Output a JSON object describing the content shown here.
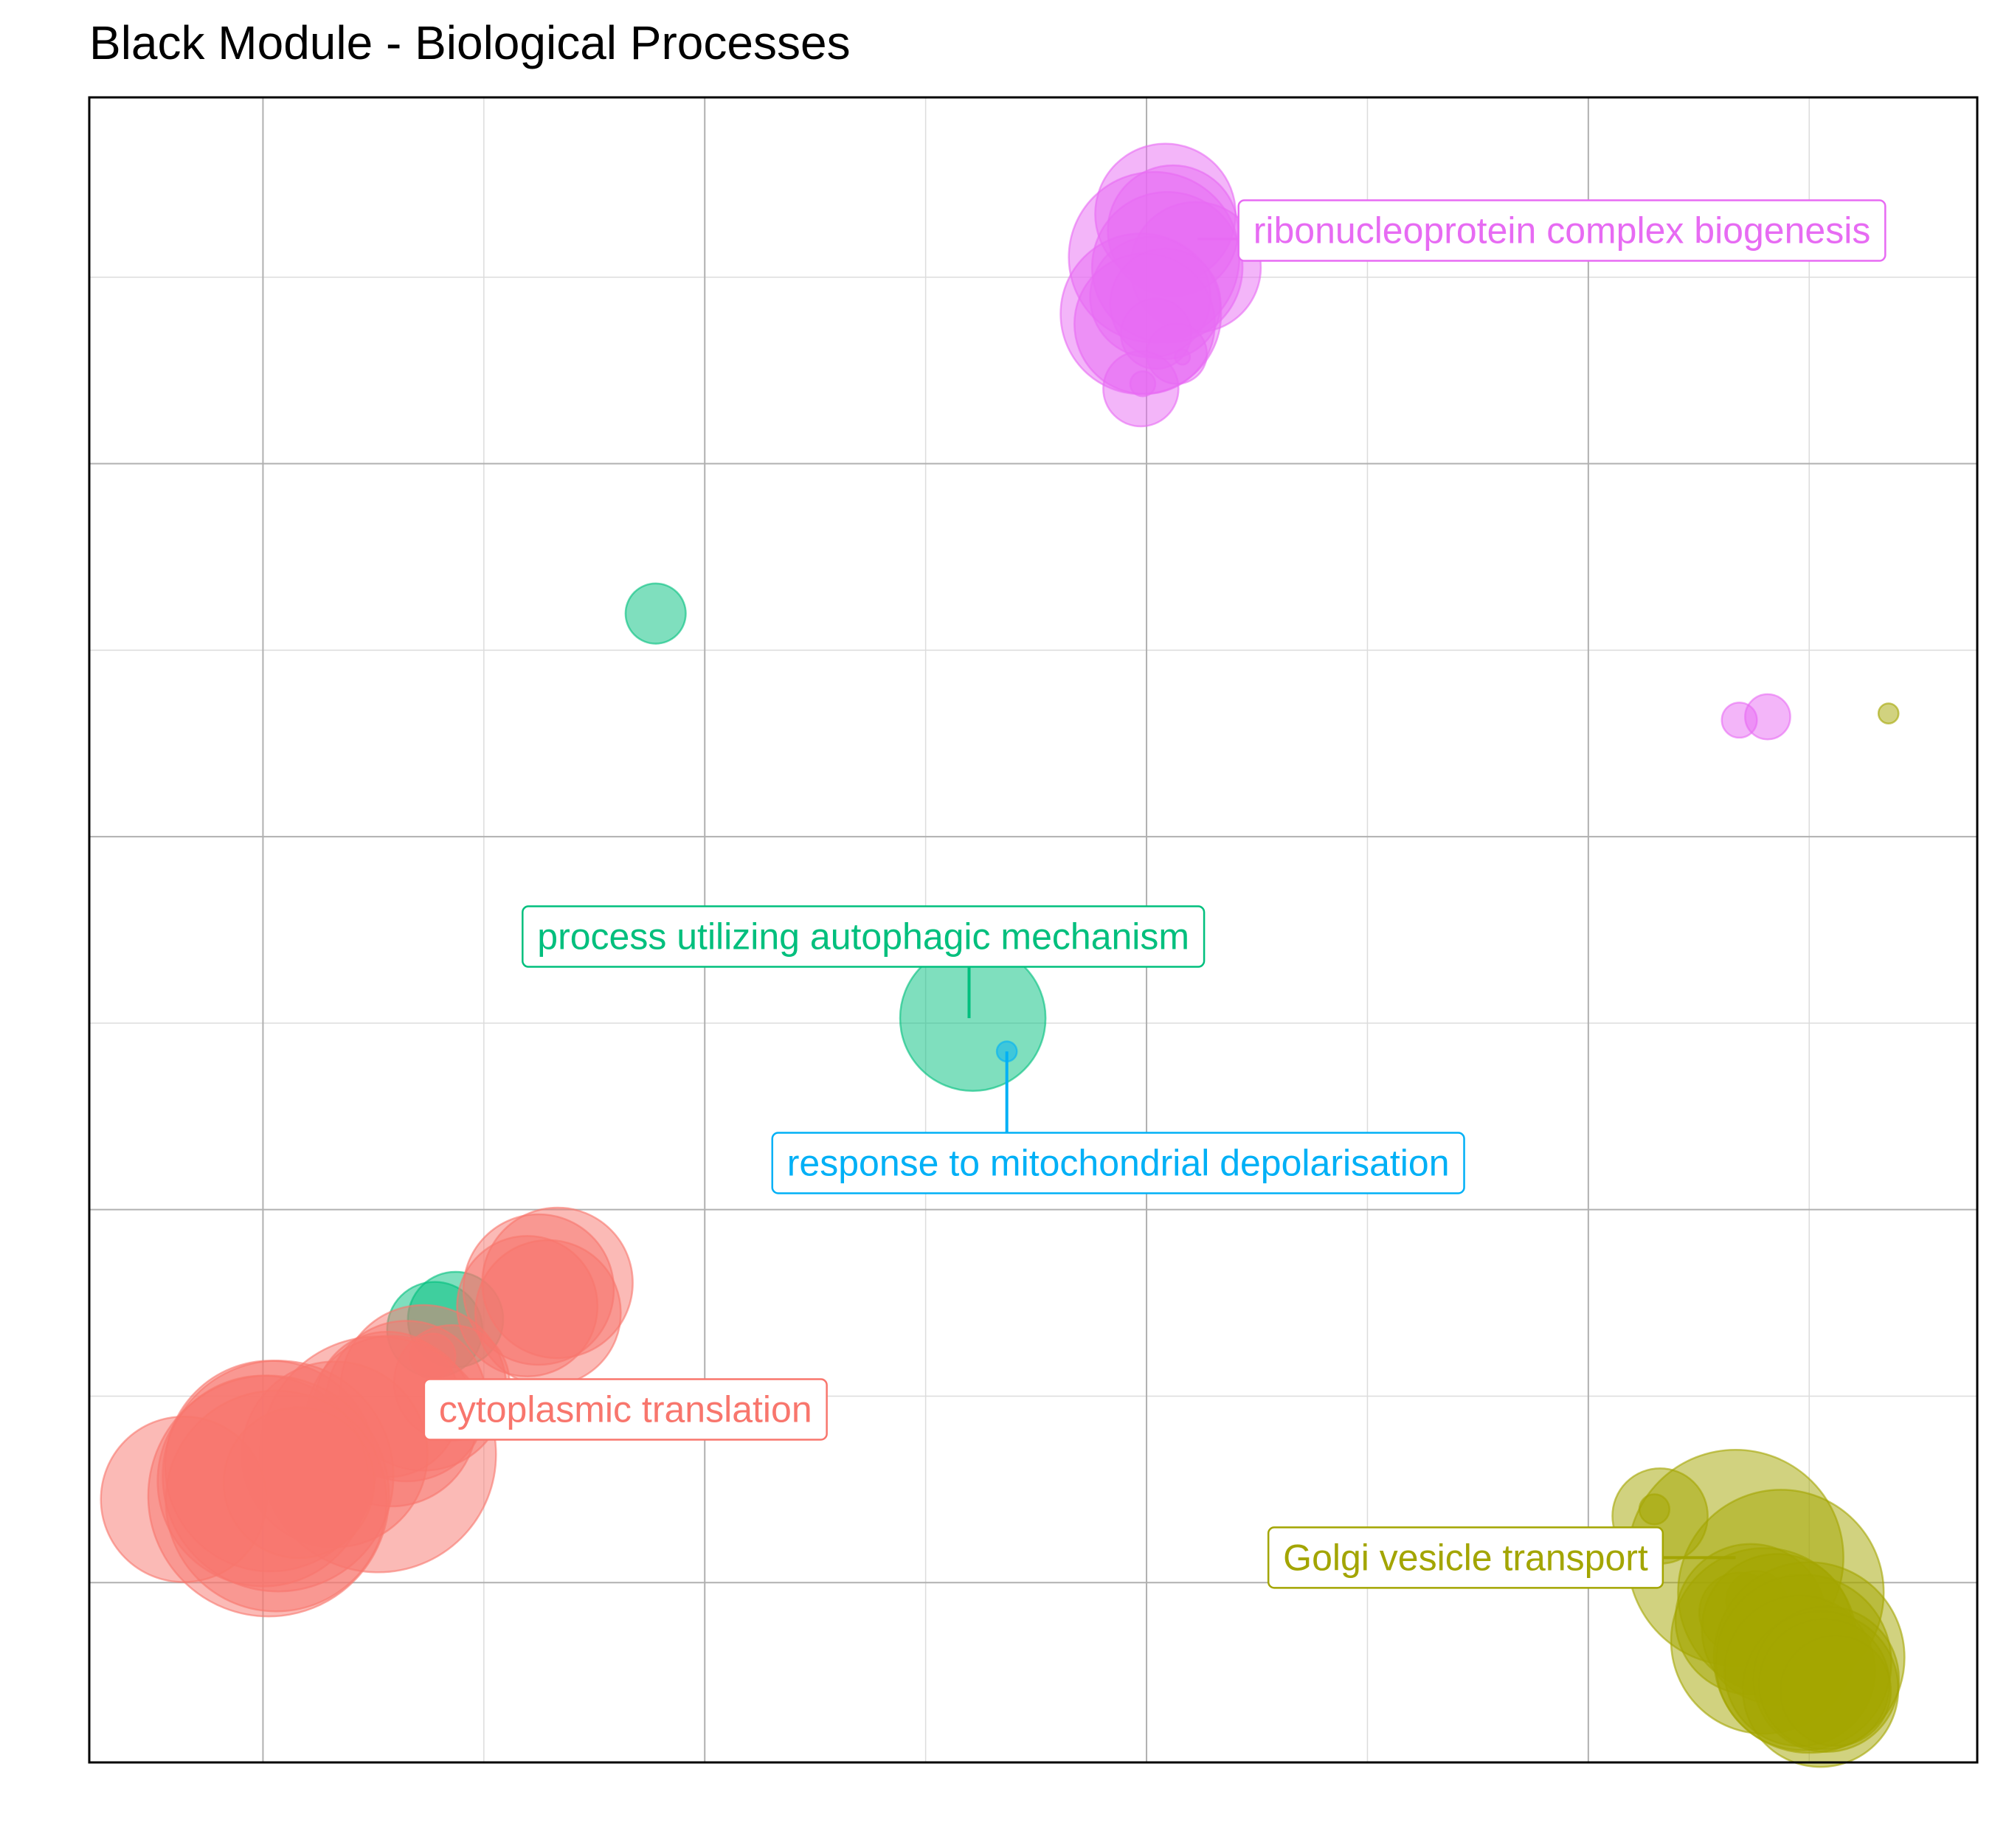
{
  "chart_data": {
    "type": "scatter",
    "title": "Black Module - Biological Processes",
    "xlabel": "",
    "ylabel": "",
    "xlim": [
      0,
      100
    ],
    "ylim": [
      0,
      100
    ],
    "grid": true,
    "legend": "none",
    "colors": {
      "cytoplasmic translation": "#F8766D",
      "Golgi vesicle transport": "#A3A500",
      "process utilizing autophagic mechanism": "#00BF7D",
      "response to mitochondrial depolarisation": "#00B0F6",
      "ribonucleoprotein complex biogenesis": "#E76BF3"
    },
    "labels": [
      {
        "text": "ribonucleoprotein complex biogenesis",
        "cluster": "ribonucleoprotein complex biogenesis",
        "x": 78.0,
        "y": 92.0,
        "anchor_x": 58.7,
        "anchor_y": 91.5
      },
      {
        "text": "process utilizing autophagic mechanism",
        "cluster": "process utilizing autophagic mechanism",
        "x": 41.0,
        "y": 49.6,
        "anchor_x": 46.6,
        "anchor_y": 44.7
      },
      {
        "text": "response to mitochondrial depolarisation",
        "cluster": "response to mitochondrial depolarisation",
        "x": 54.5,
        "y": 36.0,
        "anchor_x": 48.6,
        "anchor_y": 42.7
      },
      {
        "text": "cytoplasmic translation",
        "cluster": "cytoplasmic translation",
        "x": 28.4,
        "y": 21.2,
        "anchor_x": 21.0,
        "anchor_y": 20.0
      },
      {
        "text": "Golgi vesicle transport",
        "cluster": "Golgi vesicle transport",
        "x": 72.9,
        "y": 12.3,
        "anchor_x": 87.2,
        "anchor_y": 12.3
      }
    ],
    "series": [
      {
        "cluster": "ribonucleoprotein complex biogenesis",
        "points": [
          {
            "x": 57.0,
            "y": 93.0,
            "size": 28
          },
          {
            "x": 57.4,
            "y": 92.0,
            "size": 26
          },
          {
            "x": 56.4,
            "y": 90.4,
            "size": 34
          },
          {
            "x": 57.1,
            "y": 89.8,
            "size": 30
          },
          {
            "x": 58.6,
            "y": 89.8,
            "size": 26
          },
          {
            "x": 56.2,
            "y": 88.0,
            "size": 24
          },
          {
            "x": 55.7,
            "y": 87.0,
            "size": 32
          },
          {
            "x": 55.9,
            "y": 86.4,
            "size": 28
          },
          {
            "x": 57.0,
            "y": 87.6,
            "size": 22
          },
          {
            "x": 56.5,
            "y": 85.8,
            "size": 14
          },
          {
            "x": 57.6,
            "y": 84.6,
            "size": 12
          },
          {
            "x": 57.9,
            "y": 84.4,
            "size": 3
          },
          {
            "x": 55.7,
            "y": 82.5,
            "size": 15
          },
          {
            "x": 55.8,
            "y": 82.8,
            "size": 5
          },
          {
            "x": 87.4,
            "y": 62.6,
            "size": 7
          },
          {
            "x": 88.9,
            "y": 62.8,
            "size": 9
          }
        ]
      },
      {
        "cluster": "process utilizing autophagic mechanism",
        "points": [
          {
            "x": 30.0,
            "y": 69.0,
            "size": 12
          },
          {
            "x": 46.8,
            "y": 44.7,
            "size": 29
          },
          {
            "x": 18.3,
            "y": 26.0,
            "size": 19
          },
          {
            "x": 19.4,
            "y": 26.6,
            "size": 19
          }
        ]
      },
      {
        "cluster": "response to mitochondrial depolarisation",
        "points": [
          {
            "x": 48.6,
            "y": 42.7,
            "size": 4
          }
        ]
      },
      {
        "cluster": "cytoplasmic translation",
        "points": [
          {
            "x": 23.8,
            "y": 28.4,
            "size": 30
          },
          {
            "x": 24.8,
            "y": 28.8,
            "size": 30
          },
          {
            "x": 23.2,
            "y": 27.4,
            "size": 28
          },
          {
            "x": 24.3,
            "y": 27.0,
            "size": 29
          },
          {
            "x": 18.2,
            "y": 24.4,
            "size": 9
          },
          {
            "x": 19.2,
            "y": 22.8,
            "size": 23
          },
          {
            "x": 17.7,
            "y": 22.5,
            "size": 33
          },
          {
            "x": 16.8,
            "y": 21.7,
            "size": 32
          },
          {
            "x": 15.8,
            "y": 21.5,
            "size": 29
          },
          {
            "x": 16.0,
            "y": 20.5,
            "size": 34
          },
          {
            "x": 15.3,
            "y": 18.5,
            "size": 47
          },
          {
            "x": 13.0,
            "y": 18.5,
            "size": 37
          },
          {
            "x": 9.6,
            "y": 17.8,
            "size": 42
          },
          {
            "x": 10.0,
            "y": 17.2,
            "size": 46
          },
          {
            "x": 9.2,
            "y": 16.9,
            "size": 42
          },
          {
            "x": 9.5,
            "y": 16.0,
            "size": 48
          },
          {
            "x": 9.9,
            "y": 15.7,
            "size": 44
          },
          {
            "x": 5.0,
            "y": 15.8,
            "size": 33
          },
          {
            "x": 11.1,
            "y": 16.8,
            "size": 30
          }
        ]
      },
      {
        "cluster": "Golgi vesicle transport",
        "points": [
          {
            "x": 95.3,
            "y": 63.0,
            "size": 4
          },
          {
            "x": 83.2,
            "y": 14.8,
            "size": 19
          },
          {
            "x": 82.9,
            "y": 15.2,
            "size": 6
          },
          {
            "x": 87.2,
            "y": 12.3,
            "size": 43
          },
          {
            "x": 89.6,
            "y": 10.2,
            "size": 41
          },
          {
            "x": 88.7,
            "y": 7.3,
            "size": 37
          },
          {
            "x": 88.3,
            "y": 9.7,
            "size": 12
          },
          {
            "x": 87.4,
            "y": 9.0,
            "size": 16
          },
          {
            "x": 88.0,
            "y": 8.6,
            "size": 30
          },
          {
            "x": 89.4,
            "y": 8.0,
            "size": 30
          },
          {
            "x": 91.1,
            "y": 6.3,
            "size": 38
          },
          {
            "x": 90.8,
            "y": 6.0,
            "size": 35
          },
          {
            "x": 90.6,
            "y": 5.5,
            "size": 30
          },
          {
            "x": 92.0,
            "y": 5.0,
            "size": 29
          },
          {
            "x": 91.7,
            "y": 4.4,
            "size": 31
          },
          {
            "x": 91.9,
            "y": 4.7,
            "size": 26
          },
          {
            "x": 92.5,
            "y": 4.3,
            "size": 22
          }
        ]
      }
    ]
  }
}
